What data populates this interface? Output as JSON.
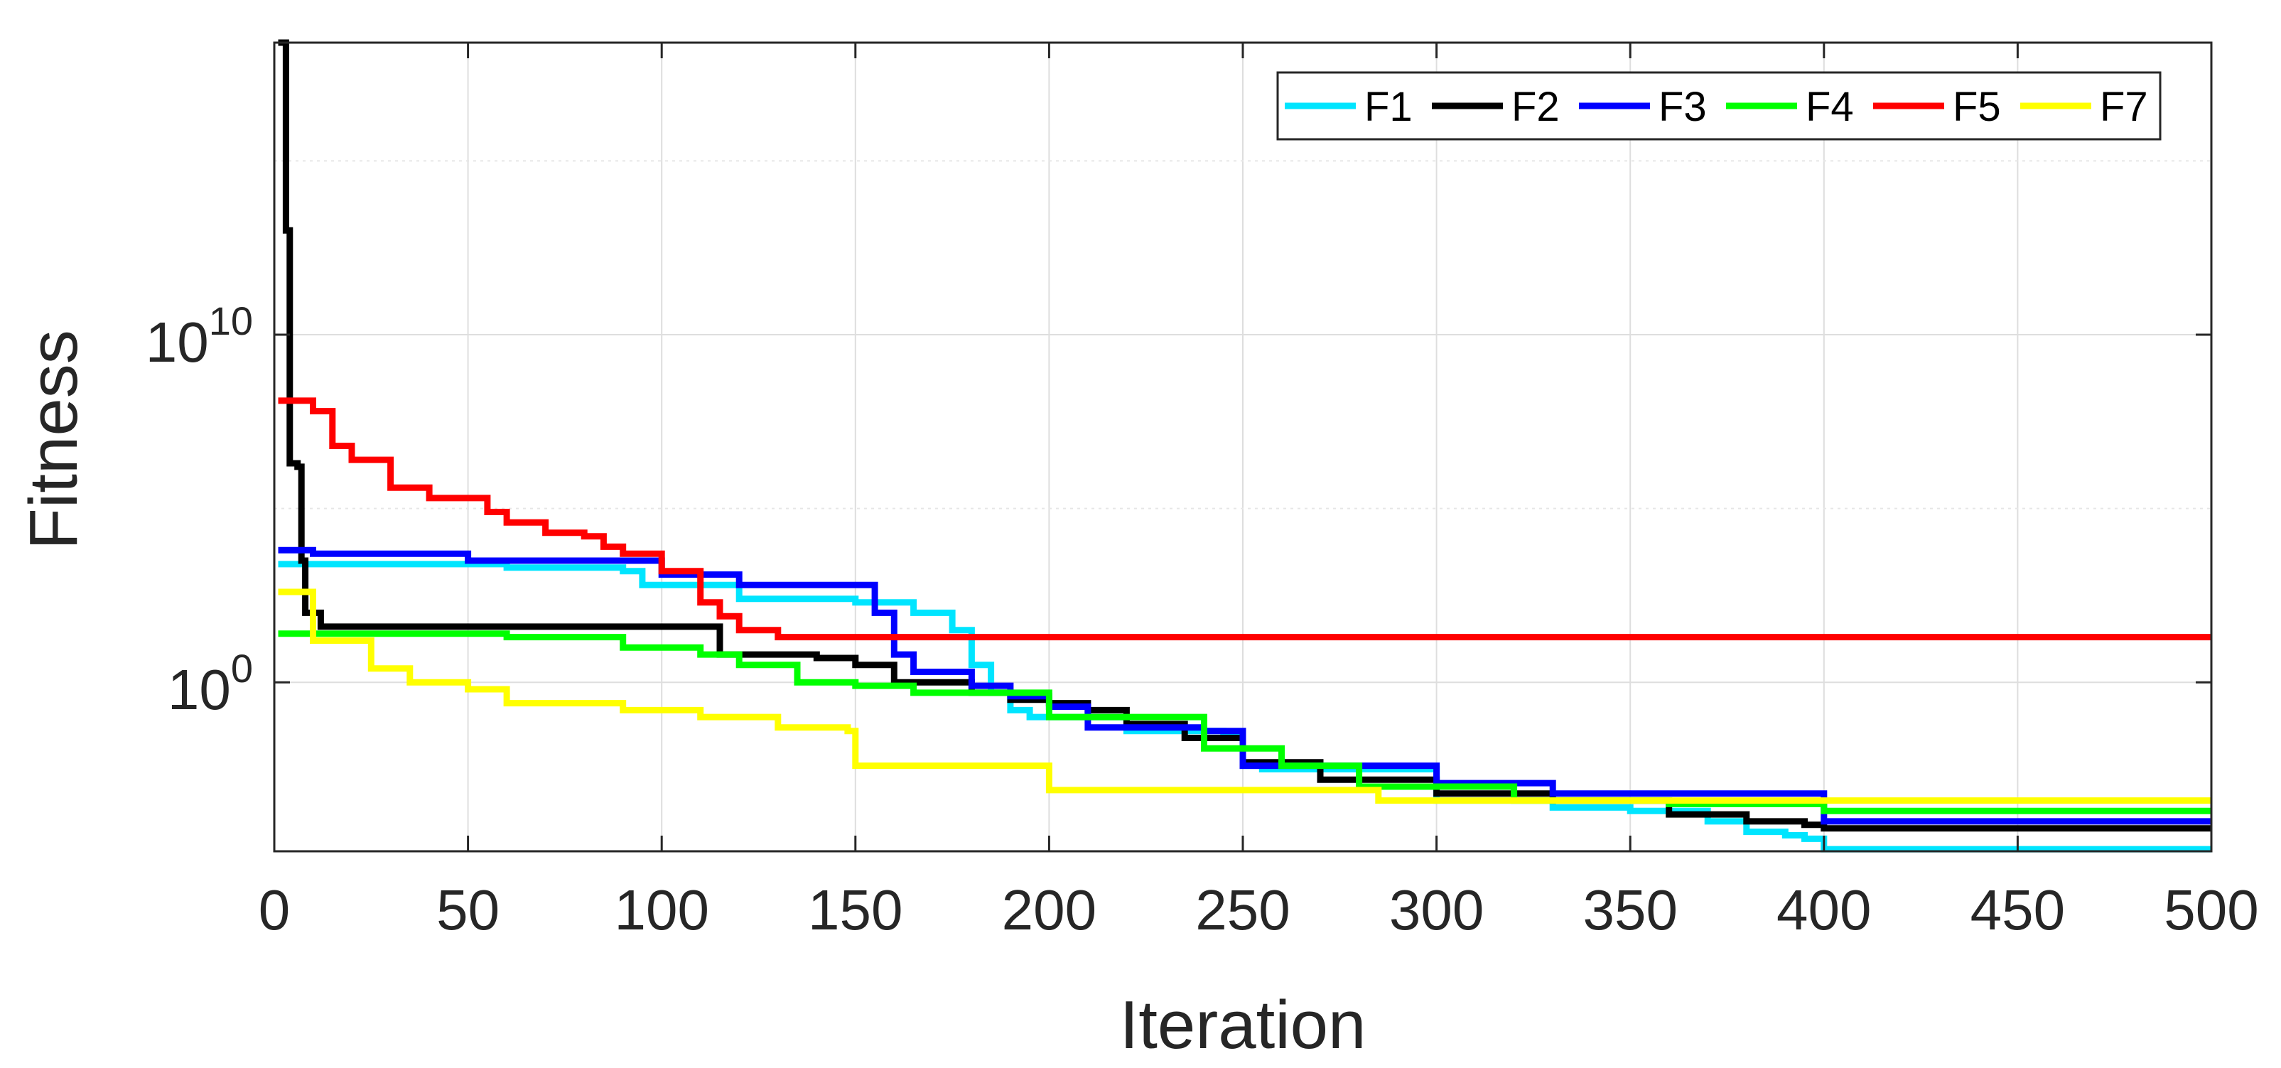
{
  "chart_data": {
    "type": "line",
    "xlabel": "Iteration",
    "ylabel": "Fitness",
    "yscale": "log",
    "xlim": [
      0,
      500
    ],
    "ylim_log10": [
      -4.86,
      18.4
    ],
    "x_ticks": [
      {
        "value": 0,
        "label": "0"
      },
      {
        "value": 50,
        "label": "50"
      },
      {
        "value": 100,
        "label": "100"
      },
      {
        "value": 150,
        "label": "150"
      },
      {
        "value": 200,
        "label": "200"
      },
      {
        "value": 250,
        "label": "250"
      },
      {
        "value": 300,
        "label": "300"
      },
      {
        "value": 350,
        "label": "350"
      },
      {
        "value": 400,
        "label": "400"
      },
      {
        "value": 450,
        "label": "450"
      },
      {
        "value": 500,
        "label": "500"
      }
    ],
    "y_ticks": [
      {
        "exp": 0,
        "label_base": "10",
        "label_exp": "0"
      },
      {
        "exp": 10,
        "label_base": "10",
        "label_exp": "10"
      }
    ],
    "y_minor_grid_exp": [
      5,
      15
    ],
    "grid": true,
    "legend_position": "top-right",
    "legend_orientation": "horizontal",
    "series": [
      {
        "name": "F1",
        "color": "#00e5ff",
        "x": [
          1,
          20,
          60,
          90,
          95,
          120,
          150,
          165,
          175,
          180,
          185,
          190,
          195,
          200,
          220,
          245,
          250,
          255,
          260,
          300,
          330,
          350,
          370,
          380,
          390,
          395,
          400,
          500
        ],
        "log10y": [
          3.4,
          3.4,
          3.3,
          3.2,
          2.8,
          2.4,
          2.3,
          2.0,
          1.5,
          0.5,
          -0.3,
          -0.8,
          -1.0,
          -1.0,
          -1.4,
          -1.5,
          -2.4,
          -2.5,
          -2.5,
          -3.4,
          -3.6,
          -3.7,
          -4.0,
          -4.3,
          -4.4,
          -4.5,
          -4.8,
          -4.8
        ]
      },
      {
        "name": "F2",
        "color": "#000000",
        "x": [
          1,
          3,
          4,
          6,
          7,
          8,
          10,
          12,
          15,
          50,
          110,
          115,
          120,
          140,
          150,
          160,
          170,
          180,
          190,
          200,
          210,
          220,
          235,
          250,
          270,
          300,
          330,
          360,
          380,
          395,
          400,
          420,
          500
        ],
        "log10y": [
          18.4,
          13.0,
          6.3,
          6.2,
          3.5,
          2.0,
          2.0,
          1.6,
          1.6,
          1.6,
          1.6,
          0.8,
          0.8,
          0.7,
          0.5,
          0.0,
          0.0,
          -0.3,
          -0.5,
          -0.6,
          -0.8,
          -1.2,
          -1.6,
          -2.3,
          -2.8,
          -3.2,
          -3.4,
          -3.8,
          -4.0,
          -4.1,
          -4.2,
          -4.2,
          -4.2
        ]
      },
      {
        "name": "F3",
        "color": "#0000ff",
        "x": [
          1,
          10,
          50,
          100,
          120,
          150,
          155,
          160,
          165,
          170,
          180,
          190,
          200,
          210,
          240,
          250,
          300,
          330,
          400,
          500
        ],
        "log10y": [
          3.8,
          3.7,
          3.5,
          3.1,
          2.8,
          2.8,
          2.0,
          0.8,
          0.3,
          0.3,
          -0.1,
          -0.4,
          -0.7,
          -1.3,
          -1.4,
          -2.4,
          -2.9,
          -3.2,
          -4.0,
          -4.0
        ]
      },
      {
        "name": "F4",
        "color": "#00ff00",
        "x": [
          1,
          20,
          60,
          90,
          110,
          120,
          135,
          150,
          165,
          200,
          240,
          260,
          280,
          320,
          360,
          400,
          500
        ],
        "log10y": [
          1.4,
          1.4,
          1.3,
          1.0,
          0.8,
          0.5,
          0.0,
          -0.1,
          -0.3,
          -1.0,
          -1.9,
          -2.4,
          -3.0,
          -3.4,
          -3.5,
          -3.7,
          -3.7
        ]
      },
      {
        "name": "F5",
        "color": "#ff0000",
        "x": [
          1,
          10,
          15,
          20,
          30,
          40,
          55,
          60,
          70,
          80,
          85,
          90,
          100,
          110,
          115,
          120,
          130,
          500
        ],
        "log10y": [
          8.1,
          7.8,
          6.8,
          6.4,
          5.6,
          5.3,
          4.9,
          4.6,
          4.3,
          4.2,
          3.9,
          3.7,
          3.2,
          2.3,
          1.9,
          1.5,
          1.3,
          1.3
        ]
      },
      {
        "name": "F7",
        "color": "#ffff00",
        "x": [
          1,
          10,
          25,
          35,
          50,
          60,
          90,
          110,
          130,
          148,
          150,
          198,
          200,
          280,
          285,
          500
        ],
        "log10y": [
          2.6,
          1.2,
          0.4,
          0.0,
          -0.2,
          -0.6,
          -0.8,
          -1.0,
          -1.3,
          -1.4,
          -2.4,
          -2.4,
          -3.1,
          -3.1,
          -3.4,
          -3.4
        ]
      }
    ]
  }
}
